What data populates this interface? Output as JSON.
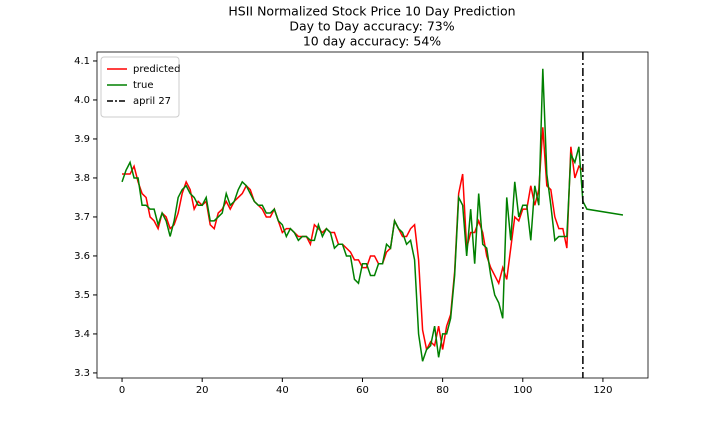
{
  "chart_data": {
    "type": "line",
    "title": "HSII Normalized Stock Price 10 Day Prediction",
    "subtitle": [
      "Day to Day accuracy: 73%",
      "10 day accuracy: 54%"
    ],
    "x": [
      0,
      1,
      2,
      3,
      4,
      5,
      6,
      7,
      8,
      9,
      10,
      11,
      12,
      13,
      14,
      15,
      16,
      17,
      18,
      19,
      20,
      21,
      22,
      23,
      24,
      25,
      26,
      27,
      28,
      29,
      30,
      31,
      32,
      33,
      34,
      35,
      36,
      37,
      38,
      39,
      40,
      41,
      42,
      43,
      44,
      45,
      46,
      47,
      48,
      49,
      50,
      51,
      52,
      53,
      54,
      55,
      56,
      57,
      58,
      59,
      60,
      61,
      62,
      63,
      64,
      65,
      66,
      67,
      68,
      69,
      70,
      71,
      72,
      73,
      74,
      75,
      76,
      77,
      78,
      79,
      80,
      81,
      82,
      83,
      84,
      85,
      86,
      87,
      88,
      89,
      90,
      91,
      92,
      93,
      94,
      95,
      96,
      97,
      98,
      99,
      100,
      101,
      102,
      103,
      104,
      105,
      106,
      107,
      108,
      109,
      110,
      111,
      112,
      113,
      114,
      115,
      116,
      125
    ],
    "series": [
      {
        "name": "predicted",
        "color": "#ff0000",
        "values": [
          3.81,
          3.81,
          3.81,
          3.83,
          3.79,
          3.76,
          3.75,
          3.7,
          3.69,
          3.67,
          3.71,
          3.7,
          3.67,
          3.68,
          3.71,
          3.76,
          3.79,
          3.77,
          3.72,
          3.74,
          3.73,
          3.74,
          3.68,
          3.67,
          3.71,
          3.72,
          3.74,
          3.72,
          3.74,
          3.75,
          3.76,
          3.78,
          3.77,
          3.74,
          3.73,
          3.72,
          3.7,
          3.7,
          3.72,
          3.69,
          3.66,
          3.67,
          3.67,
          3.66,
          3.65,
          3.65,
          3.65,
          3.63,
          3.68,
          3.67,
          3.66,
          3.67,
          3.66,
          3.66,
          3.63,
          3.63,
          3.62,
          3.61,
          3.59,
          3.59,
          3.57,
          3.57,
          3.6,
          3.6,
          3.58,
          3.58,
          3.61,
          3.62,
          3.69,
          3.67,
          3.65,
          3.65,
          3.67,
          3.68,
          3.59,
          3.41,
          3.36,
          3.38,
          3.37,
          3.42,
          3.36,
          3.42,
          3.45,
          3.56,
          3.76,
          3.81,
          3.62,
          3.66,
          3.66,
          3.69,
          3.66,
          3.6,
          3.57,
          3.55,
          3.53,
          3.57,
          3.54,
          3.62,
          3.7,
          3.69,
          3.72,
          3.72,
          3.78,
          3.73,
          3.77,
          3.93,
          3.78,
          3.77,
          3.7,
          3.67,
          3.67,
          3.62,
          3.88,
          3.8,
          3.83,
          3.82,
          null,
          null
        ]
      },
      {
        "name": "true",
        "color": "#008000",
        "values": [
          3.79,
          3.82,
          3.84,
          3.8,
          3.8,
          3.73,
          3.73,
          3.72,
          3.72,
          3.68,
          3.71,
          3.69,
          3.65,
          3.69,
          3.75,
          3.77,
          3.78,
          3.76,
          3.75,
          3.73,
          3.73,
          3.75,
          3.69,
          3.69,
          3.7,
          3.71,
          3.76,
          3.73,
          3.74,
          3.77,
          3.79,
          3.78,
          3.76,
          3.74,
          3.73,
          3.73,
          3.71,
          3.71,
          3.72,
          3.69,
          3.68,
          3.65,
          3.67,
          3.66,
          3.64,
          3.65,
          3.65,
          3.64,
          3.64,
          3.68,
          3.65,
          3.67,
          3.66,
          3.62,
          3.63,
          3.63,
          3.6,
          3.6,
          3.54,
          3.53,
          3.58,
          3.58,
          3.55,
          3.55,
          3.58,
          3.58,
          3.63,
          3.62,
          3.69,
          3.67,
          3.66,
          3.63,
          3.64,
          3.59,
          3.4,
          3.33,
          3.36,
          3.37,
          3.42,
          3.34,
          3.4,
          3.4,
          3.44,
          3.55,
          3.75,
          3.73,
          3.6,
          3.72,
          3.58,
          3.76,
          3.63,
          3.62,
          3.55,
          3.5,
          3.48,
          3.44,
          3.75,
          3.64,
          3.79,
          3.7,
          3.73,
          3.73,
          3.64,
          3.78,
          3.73,
          4.08,
          3.81,
          3.73,
          3.64,
          3.65,
          3.65,
          3.65,
          3.86,
          3.84,
          3.88,
          3.74,
          3.72,
          3.705
        ]
      }
    ],
    "vline": {
      "name": "april 27",
      "x": 115,
      "color": "#000000"
    },
    "xlim": [
      -6.25,
      131.25
    ],
    "xticks": [
      0,
      20,
      40,
      60,
      80,
      100,
      120
    ],
    "ylim": [
      3.287,
      4.123
    ],
    "yticks": [
      3.3,
      3.4,
      3.5,
      3.6,
      3.7,
      3.8,
      3.9,
      {
        "value": 4,
        "label": "4.0"
      },
      4.1
    ],
    "legend": "upper-left"
  }
}
